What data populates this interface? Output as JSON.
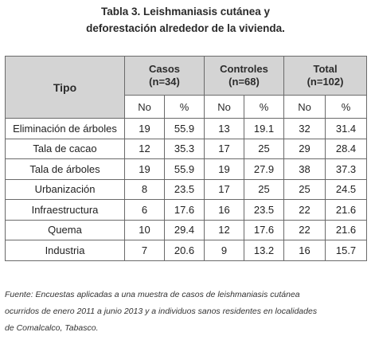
{
  "title": {
    "line1": "Tabla 3. Leishmaniasis cutánea y",
    "line2": "deforestación alrededor de la vivienda."
  },
  "table": {
    "header_tipo": "Tipo",
    "groups": [
      {
        "label_line1": "Casos",
        "label_line2": "(n=34)"
      },
      {
        "label_line1": "Controles",
        "label_line2": "(n=68)"
      },
      {
        "label_line1": "Total",
        "label_line2": "(n=102)"
      }
    ],
    "subheaders": [
      "No",
      "%",
      "No",
      "%",
      "No",
      "%"
    ],
    "rows": [
      {
        "tipo": "Eliminación de árboles",
        "cells": [
          "19",
          "55.9",
          "13",
          "19.1",
          "32",
          "31.4"
        ]
      },
      {
        "tipo": "Tala de cacao",
        "cells": [
          "12",
          "35.3",
          "17",
          "25",
          "29",
          "28.4"
        ]
      },
      {
        "tipo": "Tala de árboles",
        "cells": [
          "19",
          "55.9",
          "19",
          "27.9",
          "38",
          "37.3"
        ]
      },
      {
        "tipo": "Urbanización",
        "cells": [
          "8",
          "23.5",
          "17",
          "25",
          "25",
          "24.5"
        ]
      },
      {
        "tipo": "Infraestructura",
        "cells": [
          "6",
          "17.6",
          "16",
          "23.5",
          "22",
          "21.6"
        ]
      },
      {
        "tipo": "Quema",
        "cells": [
          "10",
          "29.4",
          "12",
          "17.6",
          "22",
          "21.6"
        ]
      },
      {
        "tipo": "Industria",
        "cells": [
          "7",
          "20.6",
          "9",
          "13.2",
          "16",
          "15.7"
        ]
      }
    ]
  },
  "footnote": {
    "line1": "Fuente: Encuestas aplicadas a una muestra de casos de leishmaniasis cutánea",
    "line2": "ocurridos de enero 2011 a junio 2013 y a individuos sanos residentes en localidades",
    "line3": "de Comalcalco, Tabasco."
  }
}
